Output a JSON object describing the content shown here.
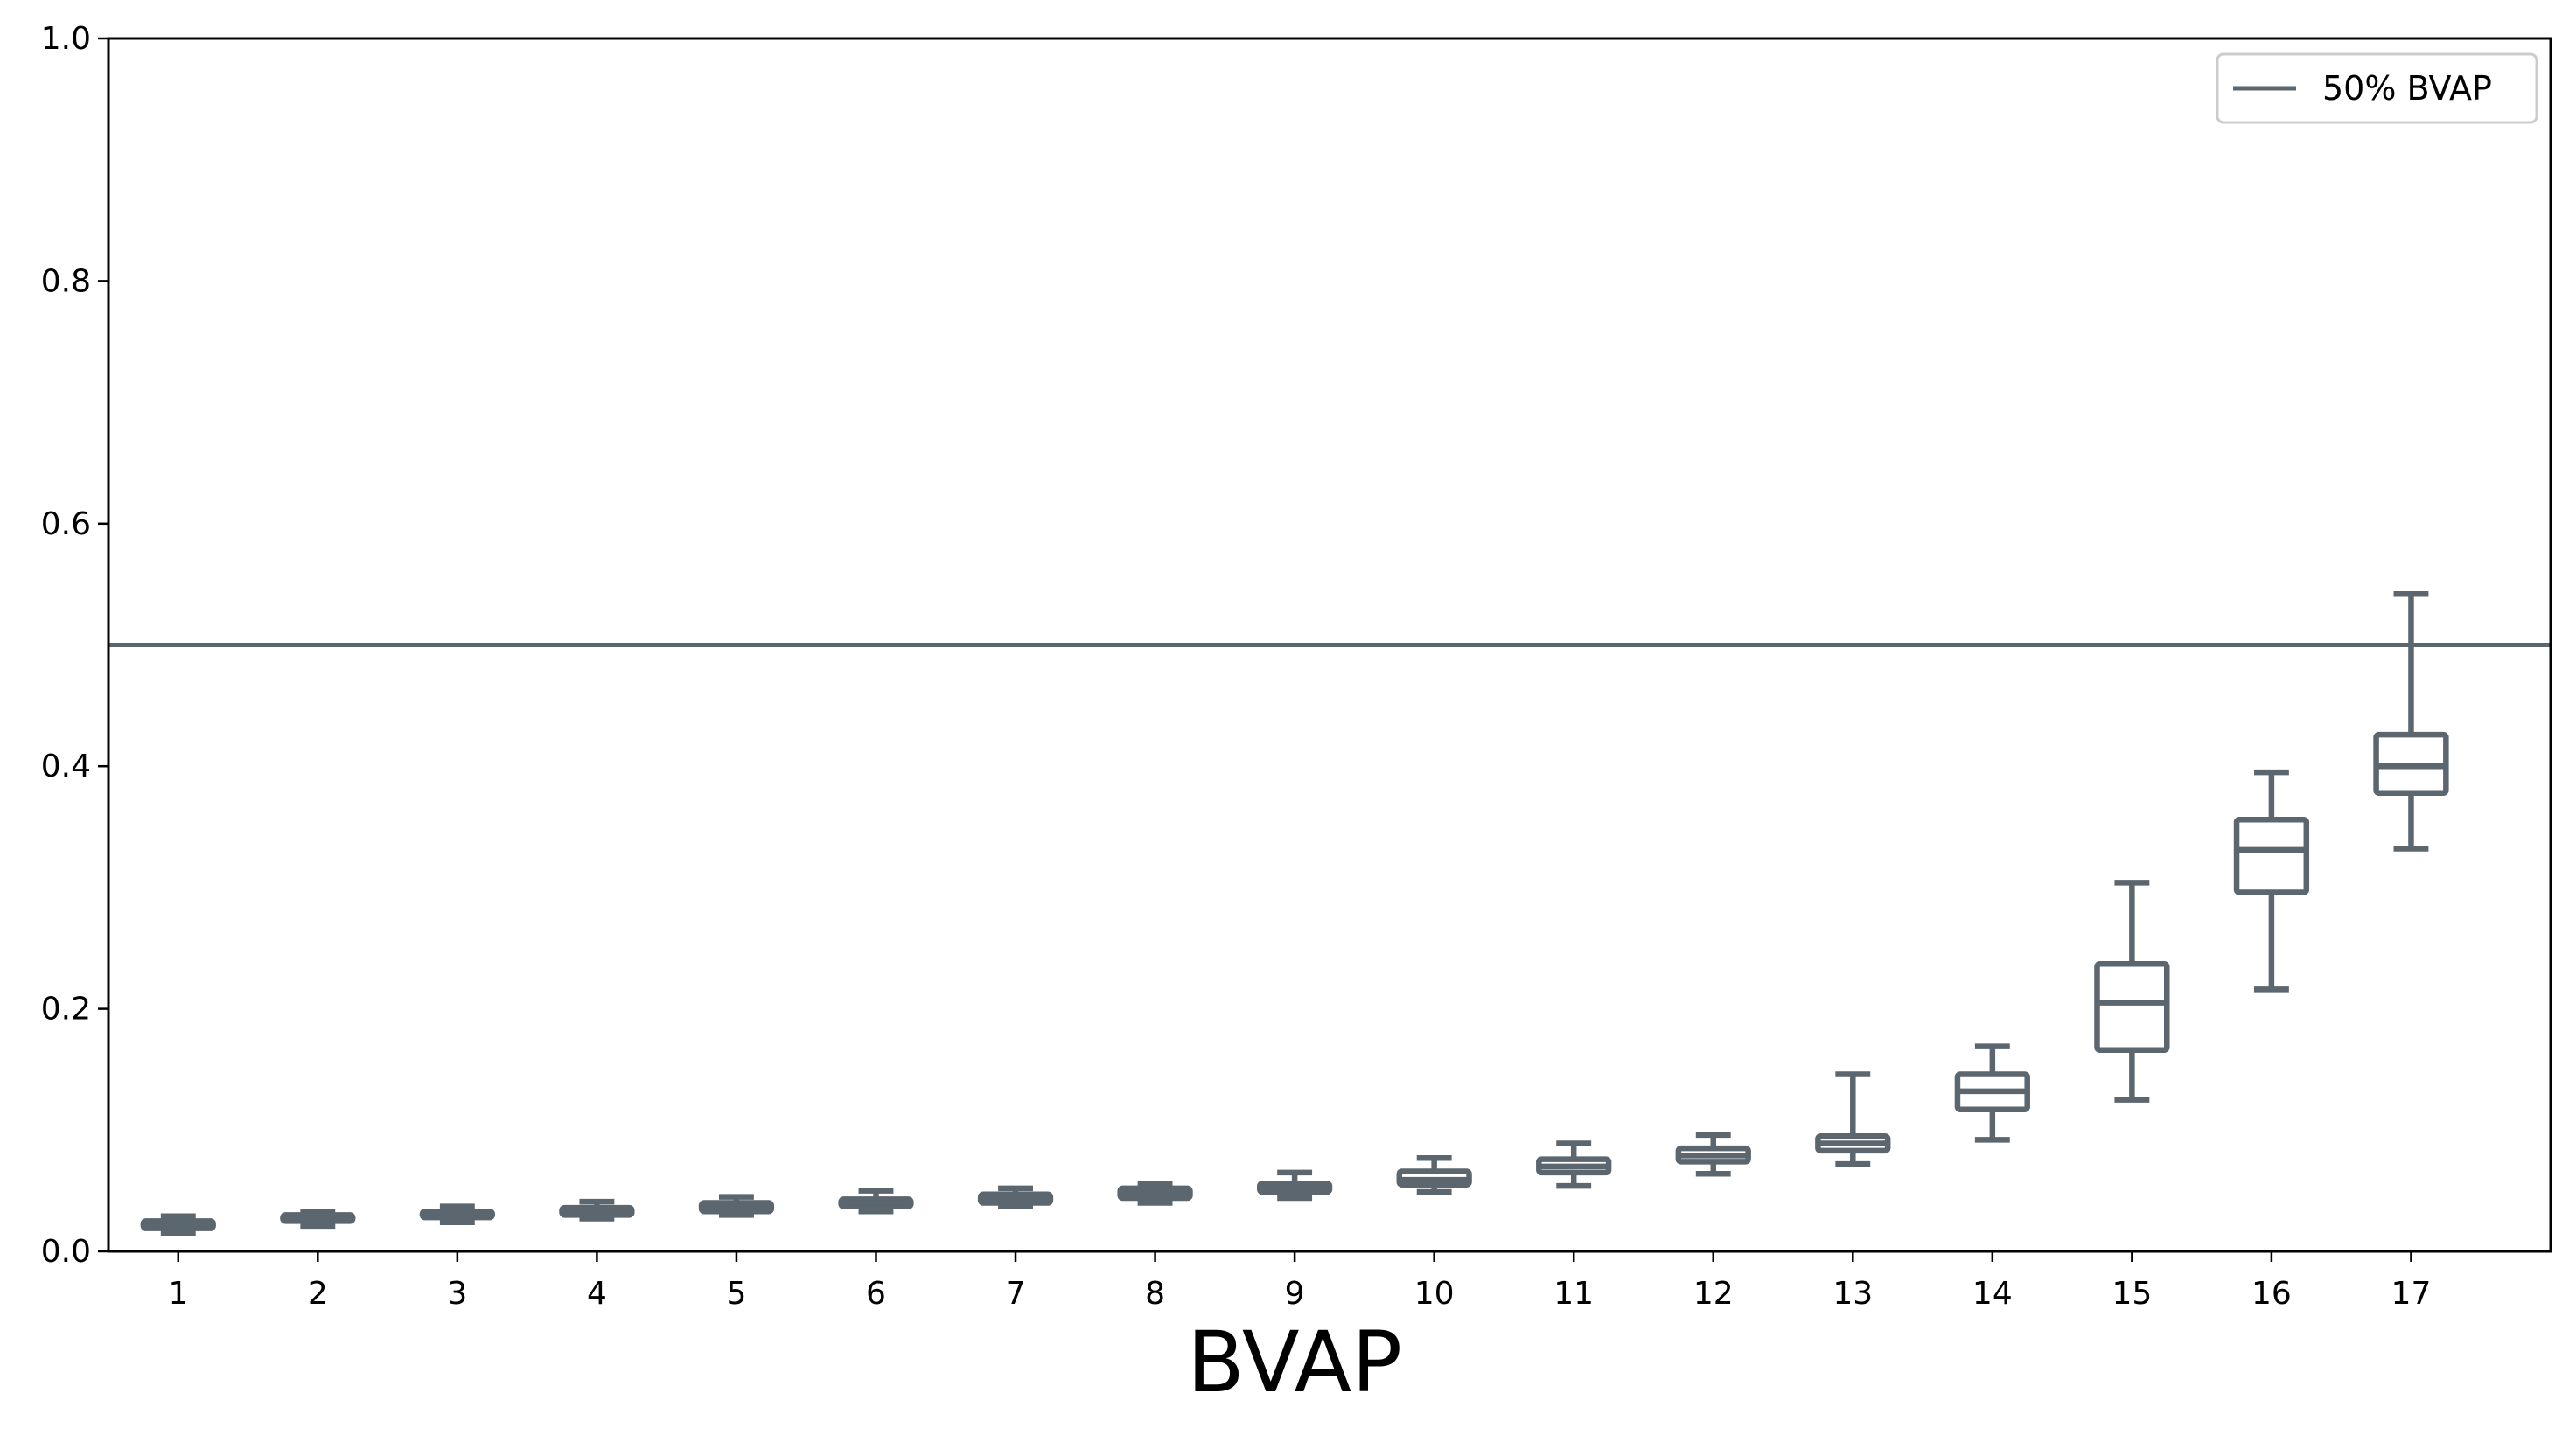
{
  "chart_data": {
    "type": "boxplot",
    "xlabel": "BVAP",
    "ylabel": "",
    "title": "",
    "ylim": [
      0.0,
      1.0
    ],
    "yticks": [
      "0.0",
      "0.2",
      "0.4",
      "0.6",
      "0.8",
      "1.0"
    ],
    "categories": [
      "1",
      "2",
      "3",
      "4",
      "5",
      "6",
      "7",
      "8",
      "9",
      "10",
      "11",
      "12",
      "13",
      "14",
      "15",
      "16",
      "17"
    ],
    "boxes": [
      {
        "whislo": 0.015,
        "q1": 0.019,
        "med": 0.022,
        "q3": 0.025,
        "whishi": 0.029
      },
      {
        "whislo": 0.021,
        "q1": 0.025,
        "med": 0.027,
        "q3": 0.03,
        "whishi": 0.033
      },
      {
        "whislo": 0.024,
        "q1": 0.028,
        "med": 0.03,
        "q3": 0.033,
        "whishi": 0.037
      },
      {
        "whislo": 0.027,
        "q1": 0.03,
        "med": 0.033,
        "q3": 0.036,
        "whishi": 0.041
      },
      {
        "whislo": 0.03,
        "q1": 0.033,
        "med": 0.036,
        "q3": 0.04,
        "whishi": 0.045
      },
      {
        "whislo": 0.033,
        "q1": 0.037,
        "med": 0.04,
        "q3": 0.043,
        "whishi": 0.05
      },
      {
        "whislo": 0.037,
        "q1": 0.04,
        "med": 0.043,
        "q3": 0.047,
        "whishi": 0.052
      },
      {
        "whislo": 0.04,
        "q1": 0.044,
        "med": 0.048,
        "q3": 0.052,
        "whishi": 0.056
      },
      {
        "whislo": 0.044,
        "q1": 0.049,
        "med": 0.052,
        "q3": 0.056,
        "whishi": 0.065
      },
      {
        "whislo": 0.049,
        "q1": 0.055,
        "med": 0.059,
        "q3": 0.066,
        "whishi": 0.077
      },
      {
        "whislo": 0.054,
        "q1": 0.065,
        "med": 0.07,
        "q3": 0.076,
        "whishi": 0.089
      },
      {
        "whislo": 0.064,
        "q1": 0.074,
        "med": 0.079,
        "q3": 0.085,
        "whishi": 0.096
      },
      {
        "whislo": 0.072,
        "q1": 0.083,
        "med": 0.089,
        "q3": 0.095,
        "whishi": 0.146
      },
      {
        "whislo": 0.092,
        "q1": 0.117,
        "med": 0.132,
        "q3": 0.146,
        "whishi": 0.169
      },
      {
        "whislo": 0.125,
        "q1": 0.166,
        "med": 0.205,
        "q3": 0.237,
        "whishi": 0.304
      },
      {
        "whislo": 0.216,
        "q1": 0.296,
        "med": 0.331,
        "q3": 0.356,
        "whishi": 0.395
      },
      {
        "whislo": 0.332,
        "q1": 0.378,
        "med": 0.4,
        "q3": 0.426,
        "whishi": 0.542
      }
    ],
    "reference_line": {
      "y": 0.5,
      "label": "50% BVAP"
    },
    "legend": {
      "position": "top-right",
      "entries": [
        "50% BVAP"
      ]
    },
    "grid": false,
    "color": "#5b666f"
  }
}
